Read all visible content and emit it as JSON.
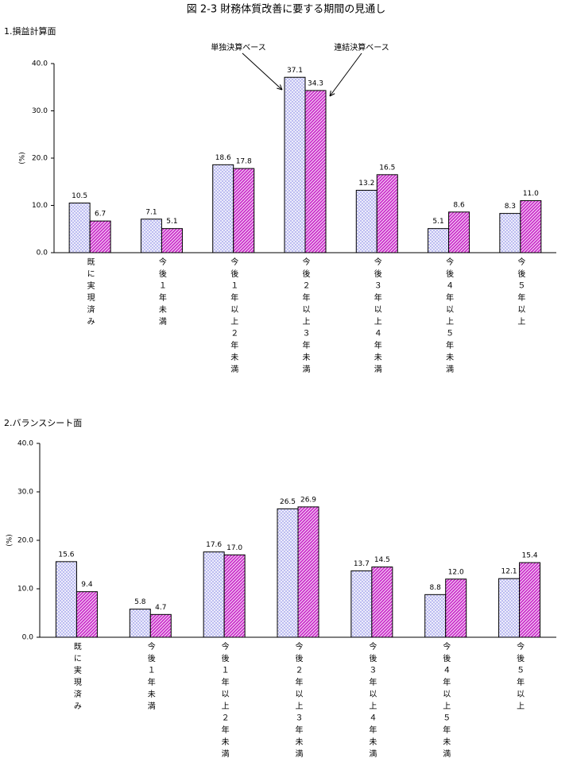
{
  "title": "図 2-3 財務体質改善に要する期間の見通し",
  "chart_data": [
    {
      "type": "bar",
      "title": "1.損益計算面",
      "y_label": "(%)",
      "categories": [
        "既に実現済み",
        "今後１年未満",
        "今後１年以上２年未満",
        "今後２年以上３年未満",
        "今後３年以上４年未満",
        "今後４年以上５年未満",
        "今後５年以上"
      ],
      "series": [
        {
          "name": "単独決算ベース",
          "color": "#b8b8f0",
          "values": [
            10.5,
            7.1,
            18.6,
            37.1,
            13.2,
            5.1,
            8.3
          ],
          "value_labels": [
            "10.5",
            "7.1",
            "18.6",
            "37.1",
            "13.2",
            "5.1",
            "8.3"
          ]
        },
        {
          "name": "連結決算ベース",
          "color": "#cc33cc",
          "values": [
            6.7,
            5.1,
            17.8,
            34.3,
            16.5,
            8.6,
            11
          ],
          "value_labels": [
            "6.7",
            "5.1",
            "17.8",
            "34.3",
            "16.5",
            "8.6",
            "11.0"
          ]
        }
      ],
      "ylim": [
        0,
        40
      ],
      "yticks": [
        {
          "value": 0,
          "label": "0.0"
        },
        {
          "value": 10,
          "label": "10.0"
        },
        {
          "value": 20,
          "label": "20.0"
        },
        {
          "value": 30,
          "label": "30.0"
        },
        {
          "value": 40,
          "label": "40.0"
        }
      ]
    },
    {
      "type": "bar",
      "title": "2.バランスシート面",
      "y_label": "(%)",
      "categories": [
        "既に実現済み",
        "今後１年未満",
        "今後１年以上２年未満",
        "今後２年以上３年未満",
        "今後３年以上４年未満",
        "今後４年以上５年未満",
        "今後５年以上"
      ],
      "series": [
        {
          "color": "#b8b8f0",
          "values": [
            15.6,
            5.8,
            17.6,
            26.5,
            13.7,
            8.8,
            12.1
          ],
          "value_labels": [
            "15.6",
            "5.8",
            "17.6",
            "26.5",
            "13.7",
            "8.8",
            "12.1"
          ]
        },
        {
          "color": "#cc33cc",
          "values": [
            9.4,
            4.7,
            17,
            26.9,
            14.5,
            12,
            15.4
          ],
          "value_labels": [
            "9.4",
            "4.7",
            "17.0",
            "26.9",
            "14.5",
            "12.0",
            "15.4"
          ]
        }
      ],
      "ylim": [
        0,
        40
      ],
      "yticks": [
        {
          "value": 0,
          "label": "0.0"
        },
        {
          "value": 10,
          "label": "10.0"
        },
        {
          "value": 20,
          "label": "20.0"
        },
        {
          "value": 30,
          "label": "30.0"
        },
        {
          "value": 40,
          "label": "40.0"
        }
      ]
    }
  ]
}
